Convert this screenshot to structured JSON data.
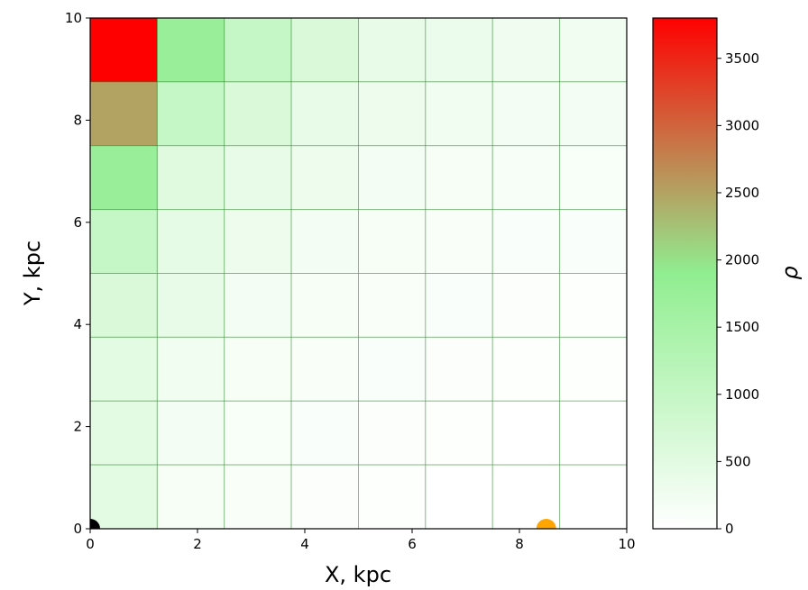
{
  "chart_data": {
    "type": "heatmap",
    "title": "",
    "xlabel": "X, kpc",
    "ylabel": "Y, kpc",
    "xlim": [
      0,
      10
    ],
    "ylim": [
      0,
      10
    ],
    "xticks": [
      "0",
      "2",
      "4",
      "6",
      "8",
      "10"
    ],
    "yticks": [
      "0",
      "2",
      "4",
      "6",
      "8",
      "10"
    ],
    "x_edges": [
      0,
      1.25,
      2.5,
      3.75,
      5,
      6.25,
      7.5,
      8.75,
      10
    ],
    "y_edges": [
      0,
      1.25,
      2.5,
      3.75,
      5,
      6.25,
      7.5,
      8.75,
      10
    ],
    "rows_top_to_bottom": [
      [
        3800,
        1750,
        1000,
        650,
        400,
        320,
        280,
        260
      ],
      [
        2500,
        1000,
        650,
        400,
        300,
        250,
        200,
        200
      ],
      [
        1750,
        550,
        400,
        300,
        200,
        160,
        140,
        120
      ],
      [
        1000,
        450,
        300,
        200,
        150,
        100,
        90,
        80
      ],
      [
        650,
        400,
        200,
        150,
        100,
        80,
        60,
        50
      ],
      [
        500,
        250,
        150,
        100,
        80,
        60,
        40,
        30
      ],
      [
        500,
        200,
        120,
        80,
        60,
        40,
        20,
        0
      ],
      [
        500,
        150,
        100,
        60,
        40,
        20,
        0,
        0
      ]
    ],
    "colorbar": {
      "label": "ρ",
      "min": 0,
      "max": 3800,
      "ticks": [
        "0",
        "500",
        "1000",
        "1500",
        "2000",
        "2500",
        "3000",
        "3500"
      ],
      "colors": [
        "#ffffff",
        "#90ee90",
        "#ff0000"
      ]
    },
    "markers": [
      {
        "x": 0,
        "y": 0,
        "color": "#000000"
      },
      {
        "x": 8.5,
        "y": 0,
        "color": "#ffa500"
      }
    ],
    "grid": true
  }
}
